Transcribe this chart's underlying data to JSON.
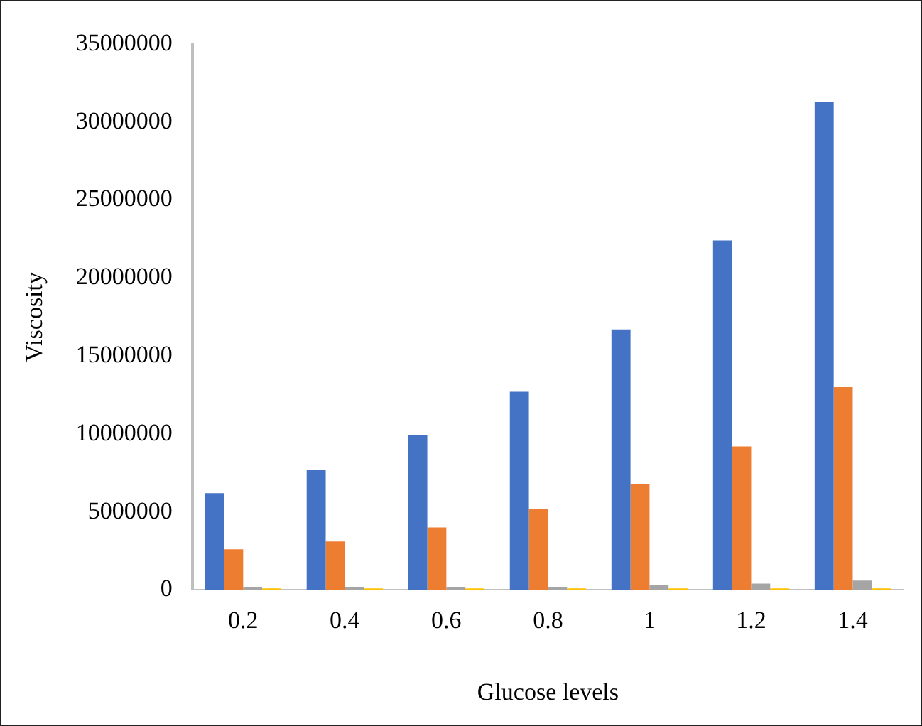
{
  "chart_data": {
    "type": "bar",
    "xlabel": "Glucose levels",
    "ylabel": "Viscosity",
    "categories": [
      "0.2",
      "0.4",
      "0.6",
      "0.8",
      "1",
      "1.2",
      "1.4"
    ],
    "series": [
      {
        "color": "#4472c4",
        "values": [
          6200000,
          7700000,
          9900000,
          12700000,
          16700000,
          22400000,
          31300000
        ]
      },
      {
        "color": "#ed7d31",
        "values": [
          2600000,
          3100000,
          4000000,
          5200000,
          6800000,
          9200000,
          13000000
        ]
      },
      {
        "color": "#a5a5a5",
        "values": [
          200000,
          200000,
          200000,
          200000,
          300000,
          400000,
          600000
        ]
      },
      {
        "color": "#ffc000",
        "values": [
          100000,
          100000,
          100000,
          100000,
          100000,
          100000,
          100000
        ]
      }
    ],
    "ylim": [
      0,
      35000000
    ],
    "yticks": [
      0,
      5000000,
      10000000,
      15000000,
      20000000,
      25000000,
      30000000,
      35000000
    ],
    "grid": false,
    "legend": false
  }
}
